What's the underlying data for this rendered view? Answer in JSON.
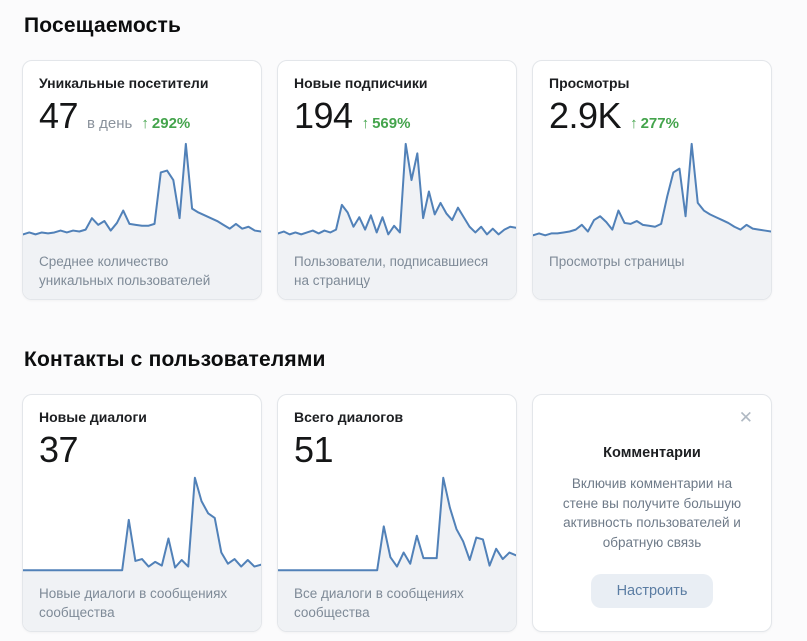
{
  "icons": {
    "arrow_up": "↑",
    "close": "✕"
  },
  "colors": {
    "line": "#5181b8",
    "area_fill": "#f0f2f5",
    "delta_green": "#44a44c",
    "button_bg": "#e9eef4",
    "button_text": "#5b7da3"
  },
  "sections": [
    {
      "title": "Посещаемость",
      "cards": [
        {
          "title": "Уникальные посетители",
          "value": "47",
          "value_suffix": "в день",
          "delta": "292%",
          "caption": "Среднее количество уникальных пользователей"
        },
        {
          "title": "Новые подписчики",
          "value": "194",
          "delta": "569%",
          "caption": "Пользователи, подписавшиеся на страницу"
        },
        {
          "title": "Просмотры",
          "value": "2.9K",
          "delta": "277%",
          "caption": "Просмотры страницы"
        }
      ]
    },
    {
      "title": "Контакты с пользователями",
      "cards": [
        {
          "title": "Новые диалоги",
          "value": "37",
          "caption": "Новые диалоги в сообщениях сообщества"
        },
        {
          "title": "Всего диалогов",
          "value": "51",
          "caption": "Все диалоги в сообщениях сообщества"
        }
      ],
      "promo": {
        "title": "Комментарии",
        "body": "Включив комментарии на стене вы получите большую активность пользователей и обратную связь",
        "button": "Настроить"
      }
    }
  ],
  "chart_data": [
    {
      "type": "line",
      "title": "Уникальные посетители — sparkline",
      "ylabel": "",
      "xlabel": "",
      "grid": false,
      "ylim": [
        0,
        100
      ],
      "values": [
        5,
        7,
        5,
        7,
        6,
        7,
        9,
        7,
        9,
        8,
        10,
        22,
        15,
        19,
        9,
        17,
        30,
        16,
        15,
        14,
        14,
        16,
        70,
        72,
        62,
        22,
        100,
        32,
        28,
        25,
        22,
        19,
        15,
        11,
        16,
        11,
        13,
        9,
        8
      ]
    },
    {
      "type": "line",
      "title": "Новые подписчики — sparkline",
      "ylabel": "",
      "xlabel": "",
      "grid": false,
      "ylim": [
        0,
        100
      ],
      "values": [
        6,
        8,
        5,
        7,
        5,
        7,
        9,
        6,
        9,
        7,
        10,
        36,
        28,
        13,
        23,
        10,
        25,
        7,
        23,
        5,
        14,
        7,
        100,
        62,
        90,
        22,
        50,
        26,
        38,
        27,
        20,
        33,
        23,
        13,
        7,
        13,
        5,
        11,
        5,
        10,
        13,
        12
      ]
    },
    {
      "type": "line",
      "title": "Просмотры — sparkline",
      "ylabel": "",
      "xlabel": "",
      "grid": false,
      "ylim": [
        0,
        100
      ],
      "values": [
        4,
        6,
        4,
        6,
        6,
        7,
        8,
        10,
        15,
        8,
        20,
        24,
        18,
        10,
        30,
        17,
        16,
        19,
        15,
        14,
        13,
        16,
        45,
        70,
        74,
        24,
        100,
        38,
        30,
        26,
        23,
        20,
        17,
        13,
        10,
        15,
        11,
        10,
        9,
        8
      ]
    },
    {
      "type": "line",
      "title": "Новые диалоги — sparkline",
      "ylabel": "",
      "xlabel": "",
      "grid": false,
      "ylim": [
        0,
        100
      ],
      "values": [
        1,
        1,
        1,
        1,
        1,
        1,
        1,
        1,
        1,
        1,
        1,
        1,
        1,
        1,
        1,
        1,
        55,
        11,
        13,
        5,
        10,
        6,
        35,
        4,
        12,
        5,
        100,
        75,
        62,
        57,
        20,
        8,
        13,
        5,
        12,
        5,
        7
      ]
    },
    {
      "type": "line",
      "title": "Всего диалогов — sparkline",
      "ylabel": "",
      "xlabel": "",
      "grid": false,
      "ylim": [
        0,
        100
      ],
      "values": [
        1,
        1,
        1,
        1,
        1,
        1,
        1,
        1,
        1,
        1,
        1,
        1,
        1,
        1,
        1,
        1,
        48,
        15,
        5,
        20,
        8,
        38,
        14,
        14,
        14,
        100,
        68,
        45,
        32,
        12,
        36,
        34,
        6,
        24,
        13,
        20,
        17
      ]
    }
  ]
}
